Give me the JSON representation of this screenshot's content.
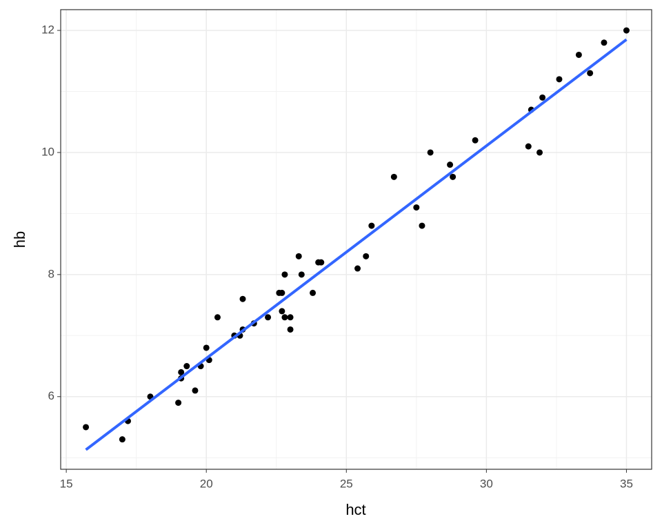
{
  "chart_data": {
    "type": "scatter",
    "x_label": "hct",
    "y_label": "hb",
    "x": [
      15.7,
      17.0,
      17.2,
      18.0,
      19.0,
      19.1,
      19.1,
      19.3,
      19.6,
      19.8,
      20.0,
      20.1,
      20.4,
      21.0,
      21.2,
      21.3,
      21.3,
      21.7,
      22.2,
      22.6,
      22.7,
      22.7,
      22.8,
      22.8,
      23.0,
      23.0,
      23.3,
      23.4,
      23.8,
      24.0,
      24.1,
      25.4,
      25.7,
      25.9,
      26.7,
      27.5,
      27.7,
      28.0,
      28.7,
      28.8,
      29.6,
      31.5,
      31.6,
      31.9,
      32.0,
      32.6,
      33.3,
      33.7,
      34.2,
      35.0
    ],
    "values": [
      5.5,
      5.3,
      5.6,
      6.0,
      5.9,
      6.3,
      6.4,
      6.5,
      6.1,
      6.5,
      6.8,
      6.6,
      7.3,
      7.0,
      7.0,
      7.1,
      7.6,
      7.2,
      7.3,
      7.7,
      7.7,
      7.4,
      7.3,
      8.0,
      7.3,
      7.1,
      8.3,
      8.0,
      7.7,
      8.2,
      8.2,
      8.1,
      8.3,
      8.8,
      9.6,
      9.1,
      8.8,
      10.0,
      9.8,
      9.6,
      10.2,
      10.1,
      10.7,
      10.0,
      10.9,
      11.2,
      11.6,
      11.3,
      11.8,
      12.0
    ],
    "color": "#000000",
    "fit": {
      "x": [
        15.7,
        35.0
      ],
      "values": [
        5.13,
        11.85
      ],
      "color": "#3366ff"
    },
    "xlim": [
      14.8,
      35.9
    ],
    "xticks": [
      15,
      20,
      25,
      30,
      35
    ],
    "xminor": [
      17.5,
      22.5,
      27.5,
      32.5
    ],
    "ylim": [
      4.81,
      12.34
    ],
    "yticks": [
      6,
      8,
      10,
      12
    ],
    "yminor": [
      5,
      7,
      9,
      11
    ],
    "grid": true
  }
}
